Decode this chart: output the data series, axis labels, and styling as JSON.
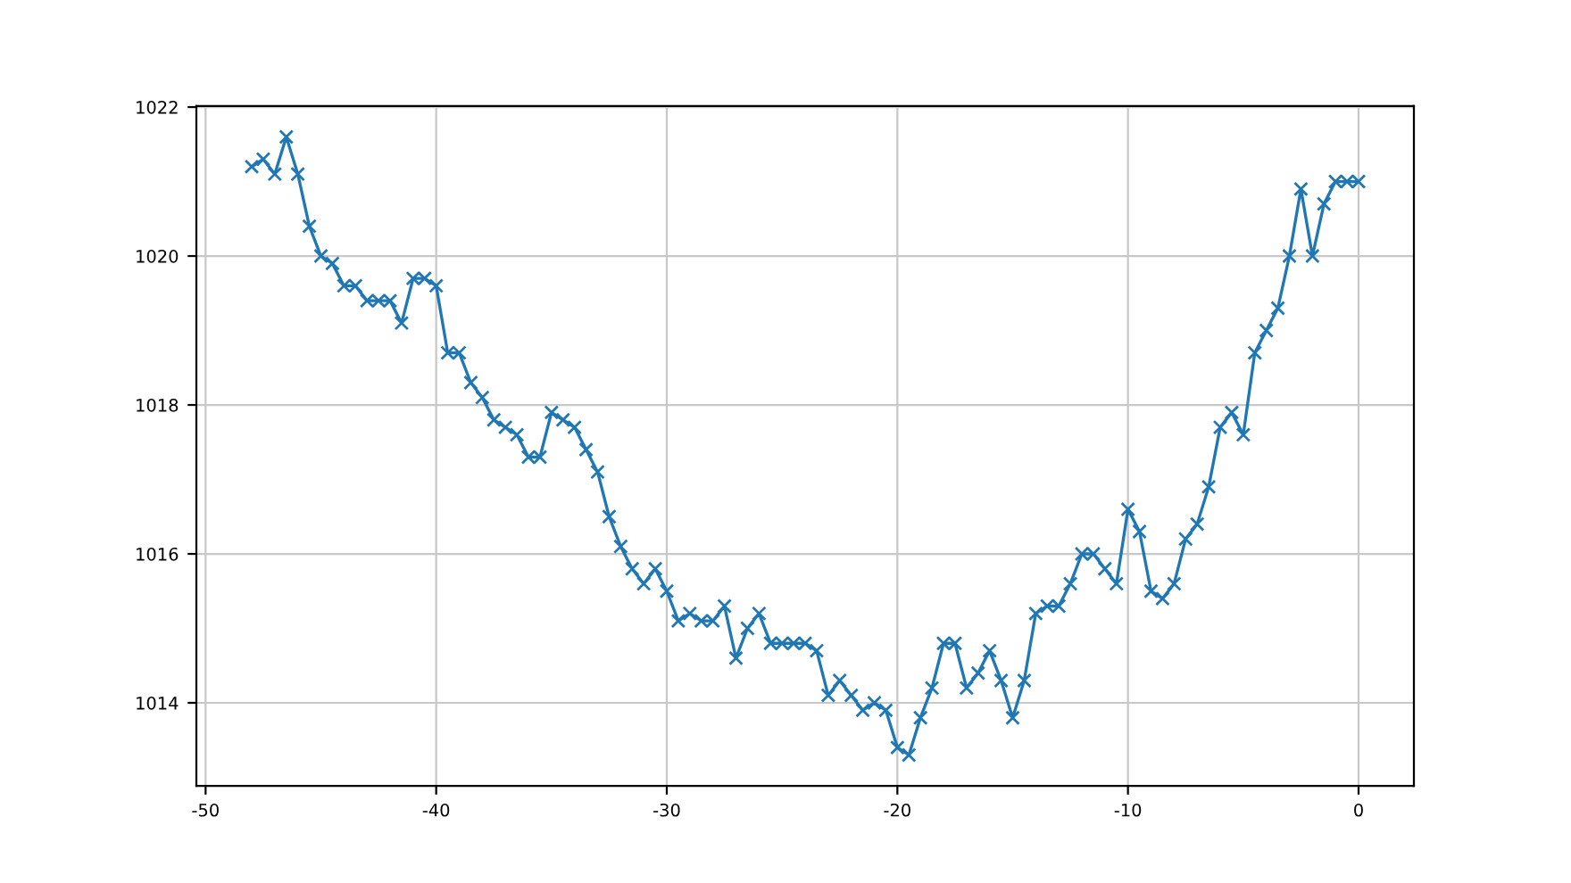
{
  "chart_data": {
    "type": "line",
    "xlim": [
      -50.4,
      2.4
    ],
    "ylim": [
      1012.885,
      1022.015
    ],
    "xticks": [
      -50,
      -40,
      -30,
      -20,
      -10,
      0
    ],
    "yticks": [
      1014,
      1016,
      1018,
      1020,
      1022
    ],
    "grid": true,
    "marker": "cross",
    "line_style": "solid",
    "x": [
      -48,
      -47.5,
      -47,
      -46.5,
      -46,
      -45.5,
      -45,
      -44.5,
      -44,
      -43.5,
      -43,
      -42.5,
      -42,
      -41.5,
      -41,
      -40.5,
      -40,
      -39.5,
      -39,
      -38.5,
      -38,
      -37.5,
      -37,
      -36.5,
      -36,
      -35.5,
      -35,
      -34.5,
      -34,
      -33.5,
      -33,
      -32.5,
      -32,
      -31.5,
      -31,
      -30.5,
      -30,
      -29.5,
      -29,
      -28.5,
      -28,
      -27.5,
      -27,
      -26.5,
      -26,
      -25.5,
      -25,
      -24.5,
      -24,
      -23.5,
      -23,
      -22.5,
      -22,
      -21.5,
      -21,
      -20.5,
      -20,
      -19.5,
      -19,
      -18.5,
      -18,
      -17.5,
      -17,
      -16.5,
      -16,
      -15.5,
      -15,
      -14.5,
      -14,
      -13.5,
      -13,
      -12.5,
      -12,
      -11.5,
      -11,
      -10.5,
      -10,
      -9.5,
      -9,
      -8.5,
      -8,
      -7.5,
      -7,
      -6.5,
      -6,
      -5.5,
      -5,
      -4.5,
      -4,
      -3.5,
      -3,
      -2.5,
      -2,
      -1.5,
      -1,
      -0.5,
      0
    ],
    "series": [
      {
        "color": "#1f77b4",
        "values": [
          1021.2,
          1021.3,
          1021.1,
          1021.6,
          1021.1,
          1020.4,
          1020.0,
          1019.9,
          1019.6,
          1019.6,
          1019.4,
          1019.4,
          1019.4,
          1019.1,
          1019.7,
          1019.7,
          1019.6,
          1018.7,
          1018.7,
          1018.3,
          1018.1,
          1017.8,
          1017.7,
          1017.6,
          1017.3,
          1017.3,
          1017.9,
          1017.8,
          1017.7,
          1017.4,
          1017.1,
          1016.5,
          1016.1,
          1015.8,
          1015.6,
          1015.8,
          1015.5,
          1015.1,
          1015.2,
          1015.1,
          1015.1,
          1015.3,
          1014.6,
          1015.0,
          1015.2,
          1014.8,
          1014.8,
          1014.8,
          1014.8,
          1014.7,
          1014.1,
          1014.3,
          1014.1,
          1013.9,
          1014.0,
          1013.9,
          1013.4,
          1013.3,
          1013.8,
          1014.2,
          1014.8,
          1014.8,
          1014.2,
          1014.4,
          1014.7,
          1014.3,
          1013.8,
          1014.3,
          1015.2,
          1015.3,
          1015.3,
          1015.6,
          1016.0,
          1016.0,
          1015.8,
          1015.6,
          1016.6,
          1016.3,
          1015.5,
          1015.4,
          1015.6,
          1016.2,
          1016.4,
          1016.9,
          1017.7,
          1017.9,
          1017.6,
          1018.7,
          1019.0,
          1019.3,
          1020.0,
          1020.9,
          1020.0,
          1020.7,
          1021.0,
          1021.0,
          1021.0
        ]
      }
    ]
  }
}
